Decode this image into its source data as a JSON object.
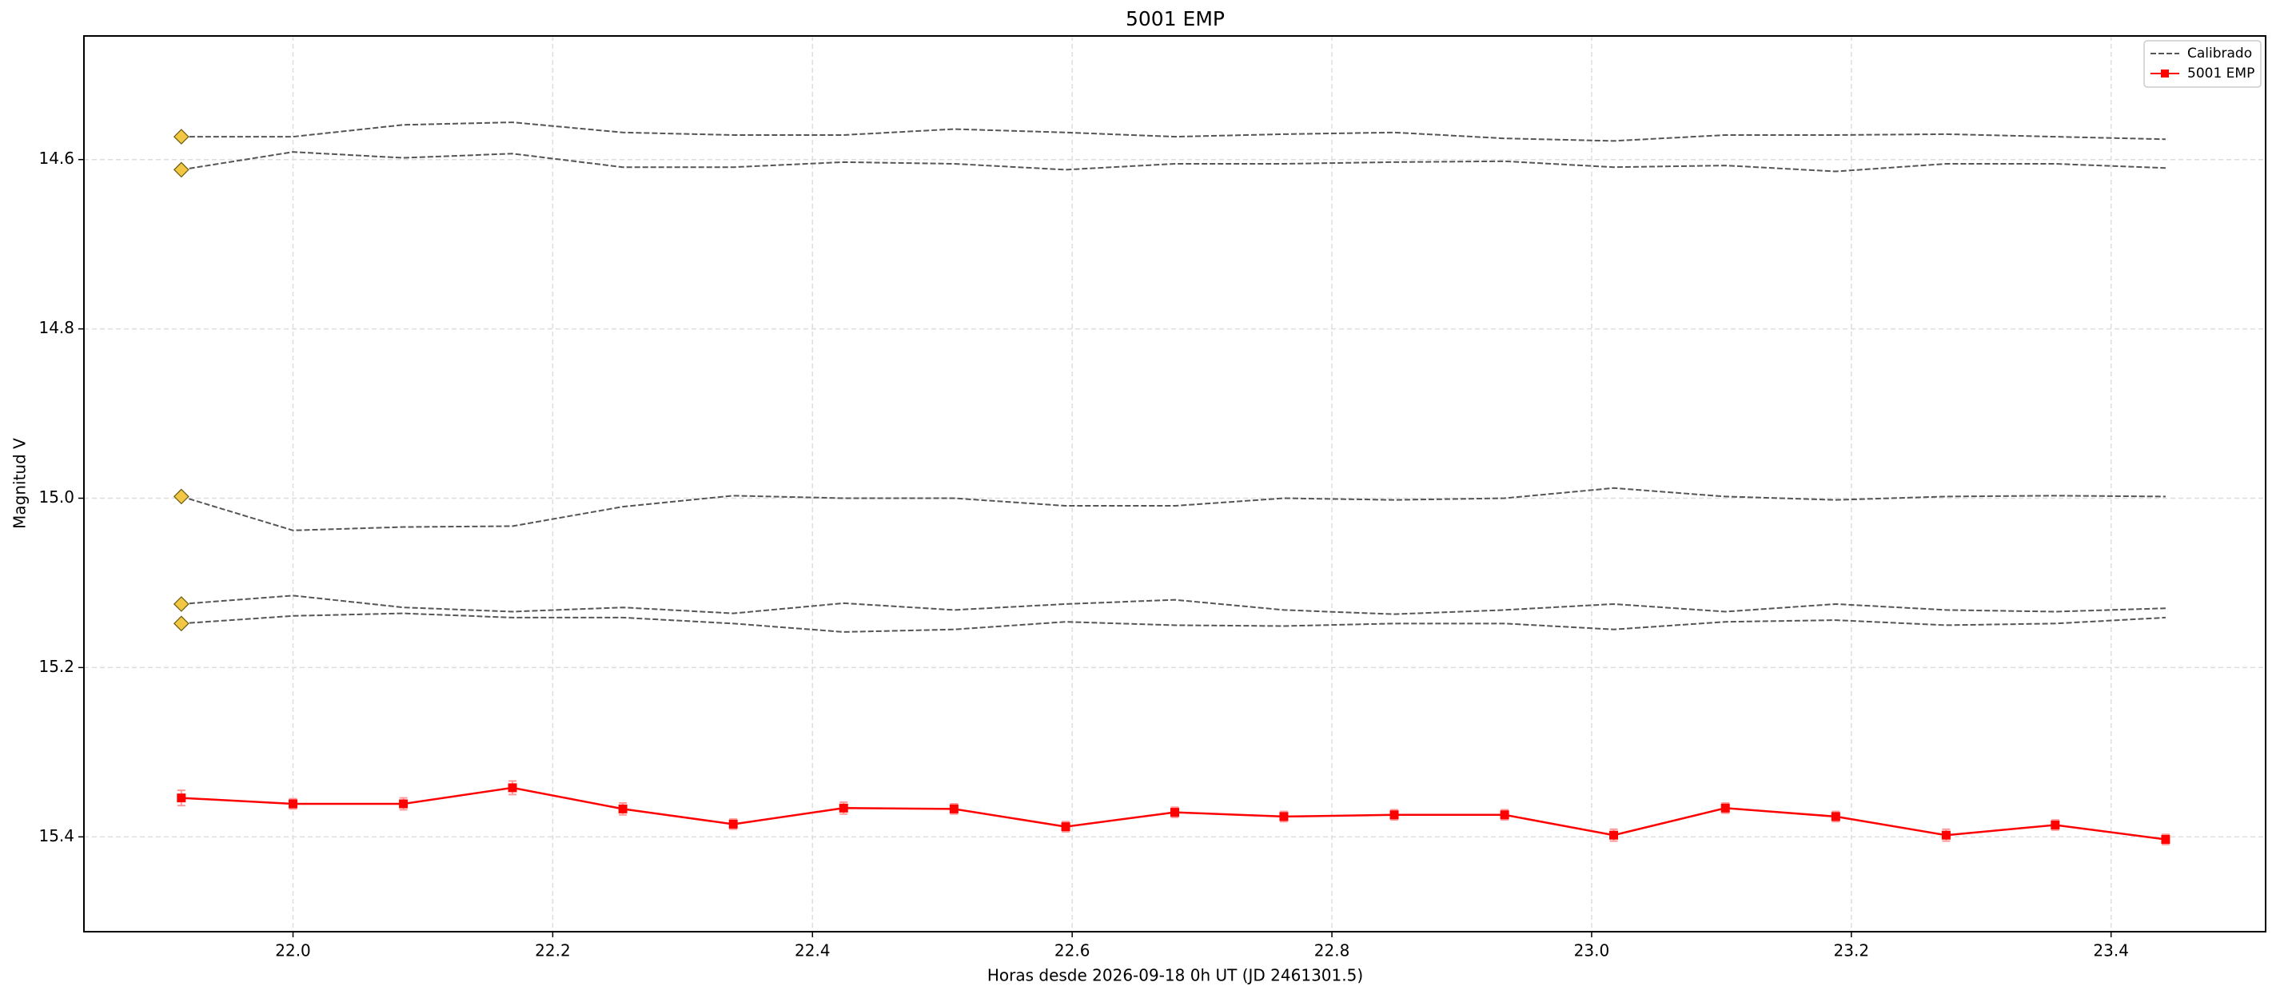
{
  "chart_data": {
    "type": "line",
    "title": "5001 EMP",
    "xlabel": "Horas desde 2026-09-18 0h UT (JD 2461301.5)",
    "ylabel": "Magnitud V",
    "x": [
      21.914,
      22.0,
      22.085,
      22.169,
      22.254,
      22.339,
      22.424,
      22.509,
      22.595,
      22.679,
      22.763,
      22.848,
      22.933,
      23.017,
      23.103,
      23.188,
      23.273,
      23.357,
      23.442
    ],
    "series": [
      {
        "name": "Calibrado",
        "color": "#555555",
        "dashed": true,
        "first_marker": {
          "shape": "diamond",
          "color": "#f2c744"
        },
        "lines": [
          [
            14.573,
            14.573,
            14.559,
            14.556,
            14.568,
            14.571,
            14.571,
            14.564,
            14.568,
            14.573,
            14.57,
            14.568,
            14.575,
            14.578,
            14.571,
            14.571,
            14.57,
            14.573,
            14.576
          ],
          [
            14.612,
            14.591,
            14.598,
            14.593,
            14.609,
            14.609,
            14.603,
            14.605,
            14.612,
            14.605,
            14.605,
            14.603,
            14.602,
            14.609,
            14.607,
            14.614,
            14.605,
            14.605,
            14.61
          ],
          [
            14.998,
            15.038,
            15.034,
            15.033,
            15.01,
            14.997,
            15.0,
            15.0,
            15.009,
            15.009,
            15.0,
            15.002,
            15.0,
            14.988,
            14.998,
            15.002,
            14.998,
            14.997,
            14.998
          ],
          [
            15.125,
            15.115,
            15.129,
            15.134,
            15.129,
            15.136,
            15.124,
            15.132,
            15.125,
            15.12,
            15.132,
            15.137,
            15.132,
            15.125,
            15.134,
            15.125,
            15.132,
            15.134,
            15.13
          ],
          [
            15.148,
            15.139,
            15.136,
            15.141,
            15.141,
            15.148,
            15.158,
            15.155,
            15.146,
            15.15,
            15.151,
            15.148,
            15.148,
            15.155,
            15.146,
            15.144,
            15.15,
            15.148,
            15.141
          ]
        ]
      },
      {
        "name": "5001 EMP",
        "color": "#ff0000",
        "marker": "square",
        "values": [
          15.354,
          15.361,
          15.361,
          15.342,
          15.367,
          15.385,
          15.366,
          15.367,
          15.388,
          15.371,
          15.376,
          15.374,
          15.374,
          15.398,
          15.366,
          15.376,
          15.398,
          15.386,
          15.403
        ],
        "errors": [
          0.009,
          0.006,
          0.007,
          0.008,
          0.007,
          0.006,
          0.007,
          0.006,
          0.006,
          0.006,
          0.006,
          0.006,
          0.006,
          0.007,
          0.006,
          0.006,
          0.007,
          0.006,
          0.006
        ]
      }
    ],
    "xlim": [
      21.839,
      23.519
    ],
    "xticks": [
      {
        "value": 22.0,
        "label": "22.0"
      },
      22.2,
      22.4,
      22.6,
      22.8,
      {
        "value": 23.0,
        "label": "23.0"
      },
      23.2,
      23.4
    ],
    "ylim": [
      14.454,
      15.512
    ],
    "y_inverted": true,
    "yticks": [
      14.6,
      14.8,
      {
        "value": 15.0,
        "label": "15.0"
      },
      15.2,
      15.4
    ],
    "grid": true,
    "legend": "upper right"
  }
}
